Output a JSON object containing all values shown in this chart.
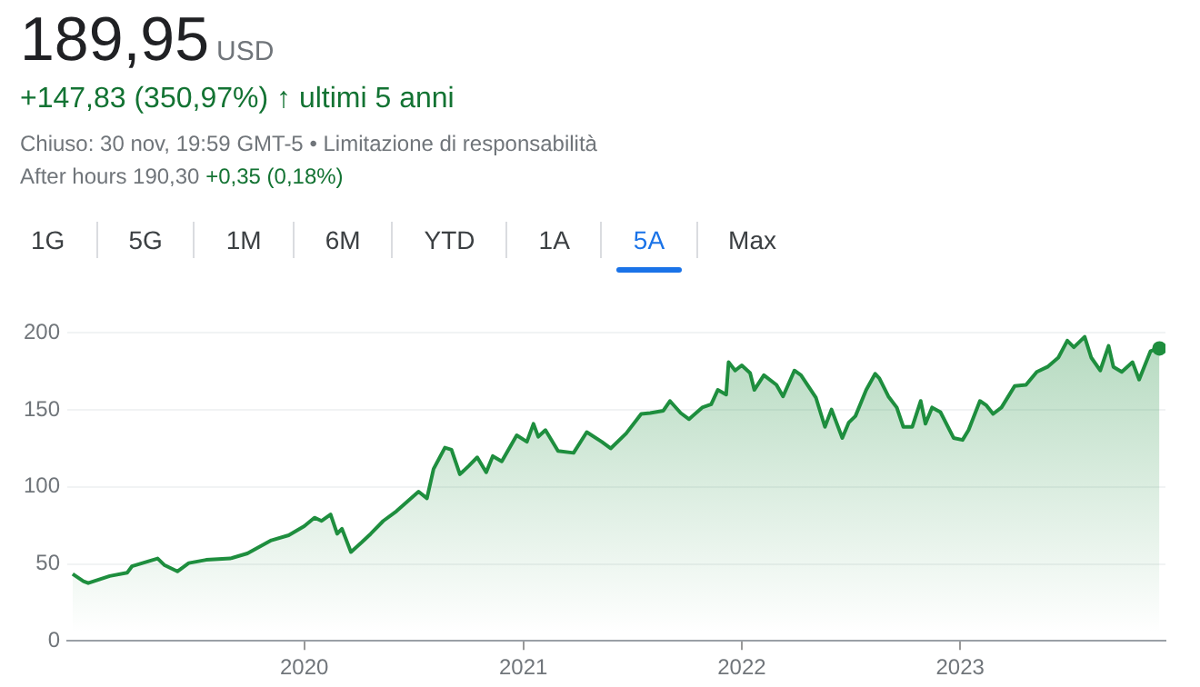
{
  "chart_data": {
    "type": "area",
    "title": "189,95",
    "subtitle": "USD",
    "annotations": [
      "+147,83 (350,97%) ↑ ultimi 5 anni",
      "Chiuso: 30 nov, 19:59 GMT-5 • Limitazione di responsabilità",
      "After hours 190,30",
      "+0,35 (0,18%)",
      "1G",
      "5G",
      "1M",
      "6M",
      "YTD",
      "1A",
      "5A",
      "Max"
    ],
    "x": [
      "2018-12-10",
      "2018-12-28",
      "2019-01-05",
      "2019-02-10",
      "2019-03-11",
      "2019-03-19",
      "2019-05-01",
      "2019-05-12",
      "2019-06-03",
      "2019-06-22",
      "2019-07-21",
      "2019-08-30",
      "2019-09-28",
      "2019-11-07",
      "2019-12-06",
      "2020-01-01",
      "2020-01-18",
      "2020-01-30",
      "2020-02-14",
      "2020-02-25",
      "2020-03-04",
      "2020-03-19",
      "2020-04-06",
      "2020-04-21",
      "2020-05-12",
      "2020-06-03",
      "2020-07-10",
      "2020-07-24",
      "2020-08-04",
      "2020-08-23",
      "2020-09-03",
      "2020-09-17",
      "2020-10-02",
      "2020-10-16",
      "2020-10-31",
      "2020-11-11",
      "2020-11-26",
      "2020-12-21",
      "2021-01-07",
      "2021-01-18",
      "2021-01-26",
      "2021-02-07",
      "2021-02-28",
      "2021-03-26",
      "2021-04-17",
      "2021-05-12",
      "2021-05-27",
      "2021-06-22",
      "2021-07-17",
      "2021-08-01",
      "2021-08-23",
      "2021-09-03",
      "2021-09-21",
      "2021-10-05",
      "2021-10-27",
      "2021-11-11",
      "2021-11-22",
      "2021-12-06",
      "2021-12-10",
      "2021-12-21",
      "2022-01-01",
      "2022-01-15",
      "2022-01-22",
      "2022-02-07",
      "2022-02-28",
      "2022-03-11",
      "2022-03-30",
      "2022-04-10",
      "2022-05-05",
      "2022-05-20",
      "2022-05-31",
      "2022-06-18",
      "2022-06-29",
      "2022-07-10",
      "2022-07-28",
      "2022-08-12",
      "2022-08-19",
      "2022-09-03",
      "2022-09-17",
      "2022-09-28",
      "2022-10-13",
      "2022-10-27",
      "2022-11-04",
      "2022-11-15",
      "2022-11-29",
      "2022-12-21",
      "2023-01-05",
      "2023-01-15",
      "2023-02-03",
      "2023-02-14",
      "2023-02-25",
      "2023-03-11",
      "2023-04-02",
      "2023-04-21",
      "2023-05-09",
      "2023-05-27",
      "2023-06-14",
      "2023-06-29",
      "2023-07-10",
      "2023-07-28",
      "2023-08-08",
      "2023-08-23",
      "2023-09-06",
      "2023-09-14",
      "2023-09-28",
      "2023-10-16",
      "2023-10-27",
      "2023-11-15",
      "2023-11-30"
    ],
    "values": [
      43.4,
      38.7,
      37.5,
      42.1,
      44.2,
      48.4,
      53.5,
      49.3,
      45.1,
      50.5,
      52.6,
      53.5,
      56.8,
      65.3,
      68.6,
      74.5,
      80,
      77.9,
      82.1,
      69.5,
      72.8,
      57.7,
      64,
      69.5,
      77.9,
      84.2,
      96.9,
      92.6,
      111.6,
      125.5,
      124.2,
      108.2,
      113.7,
      119.2,
      109.5,
      120,
      116.6,
      133.5,
      129.3,
      141,
      132.6,
      136.9,
      123.4,
      122.1,
      135.6,
      129.3,
      125,
      134.8,
      147.4,
      148,
      149.5,
      155.8,
      148,
      144,
      151.6,
      153.7,
      163,
      160,
      181,
      175.6,
      179,
      174,
      163,
      172.6,
      166.3,
      158.8,
      175.6,
      172.6,
      157.9,
      139,
      150.3,
      131.8,
      141.9,
      146,
      163,
      173.5,
      170.5,
      158.8,
      151.6,
      139,
      139,
      155.8,
      141,
      151.6,
      148.6,
      131.8,
      130.5,
      136.9,
      155.8,
      152.9,
      147.4,
      151.6,
      165.5,
      166.3,
      174.7,
      178,
      184,
      195,
      190.7,
      197.5,
      184,
      175.6,
      191.6,
      178,
      174.7,
      181,
      169.7,
      188.2,
      189.95
    ],
    "color": "#1e8e3e",
    "xlim": [
      "2018-12-01",
      "2023-12-10"
    ],
    "xticks": [
      "2020",
      "2021",
      "2022",
      "2023"
    ],
    "ylim": [
      0,
      200
    ],
    "yticks": [
      0,
      50,
      100,
      150,
      200
    ],
    "grid": "y",
    "legend": false
  }
}
